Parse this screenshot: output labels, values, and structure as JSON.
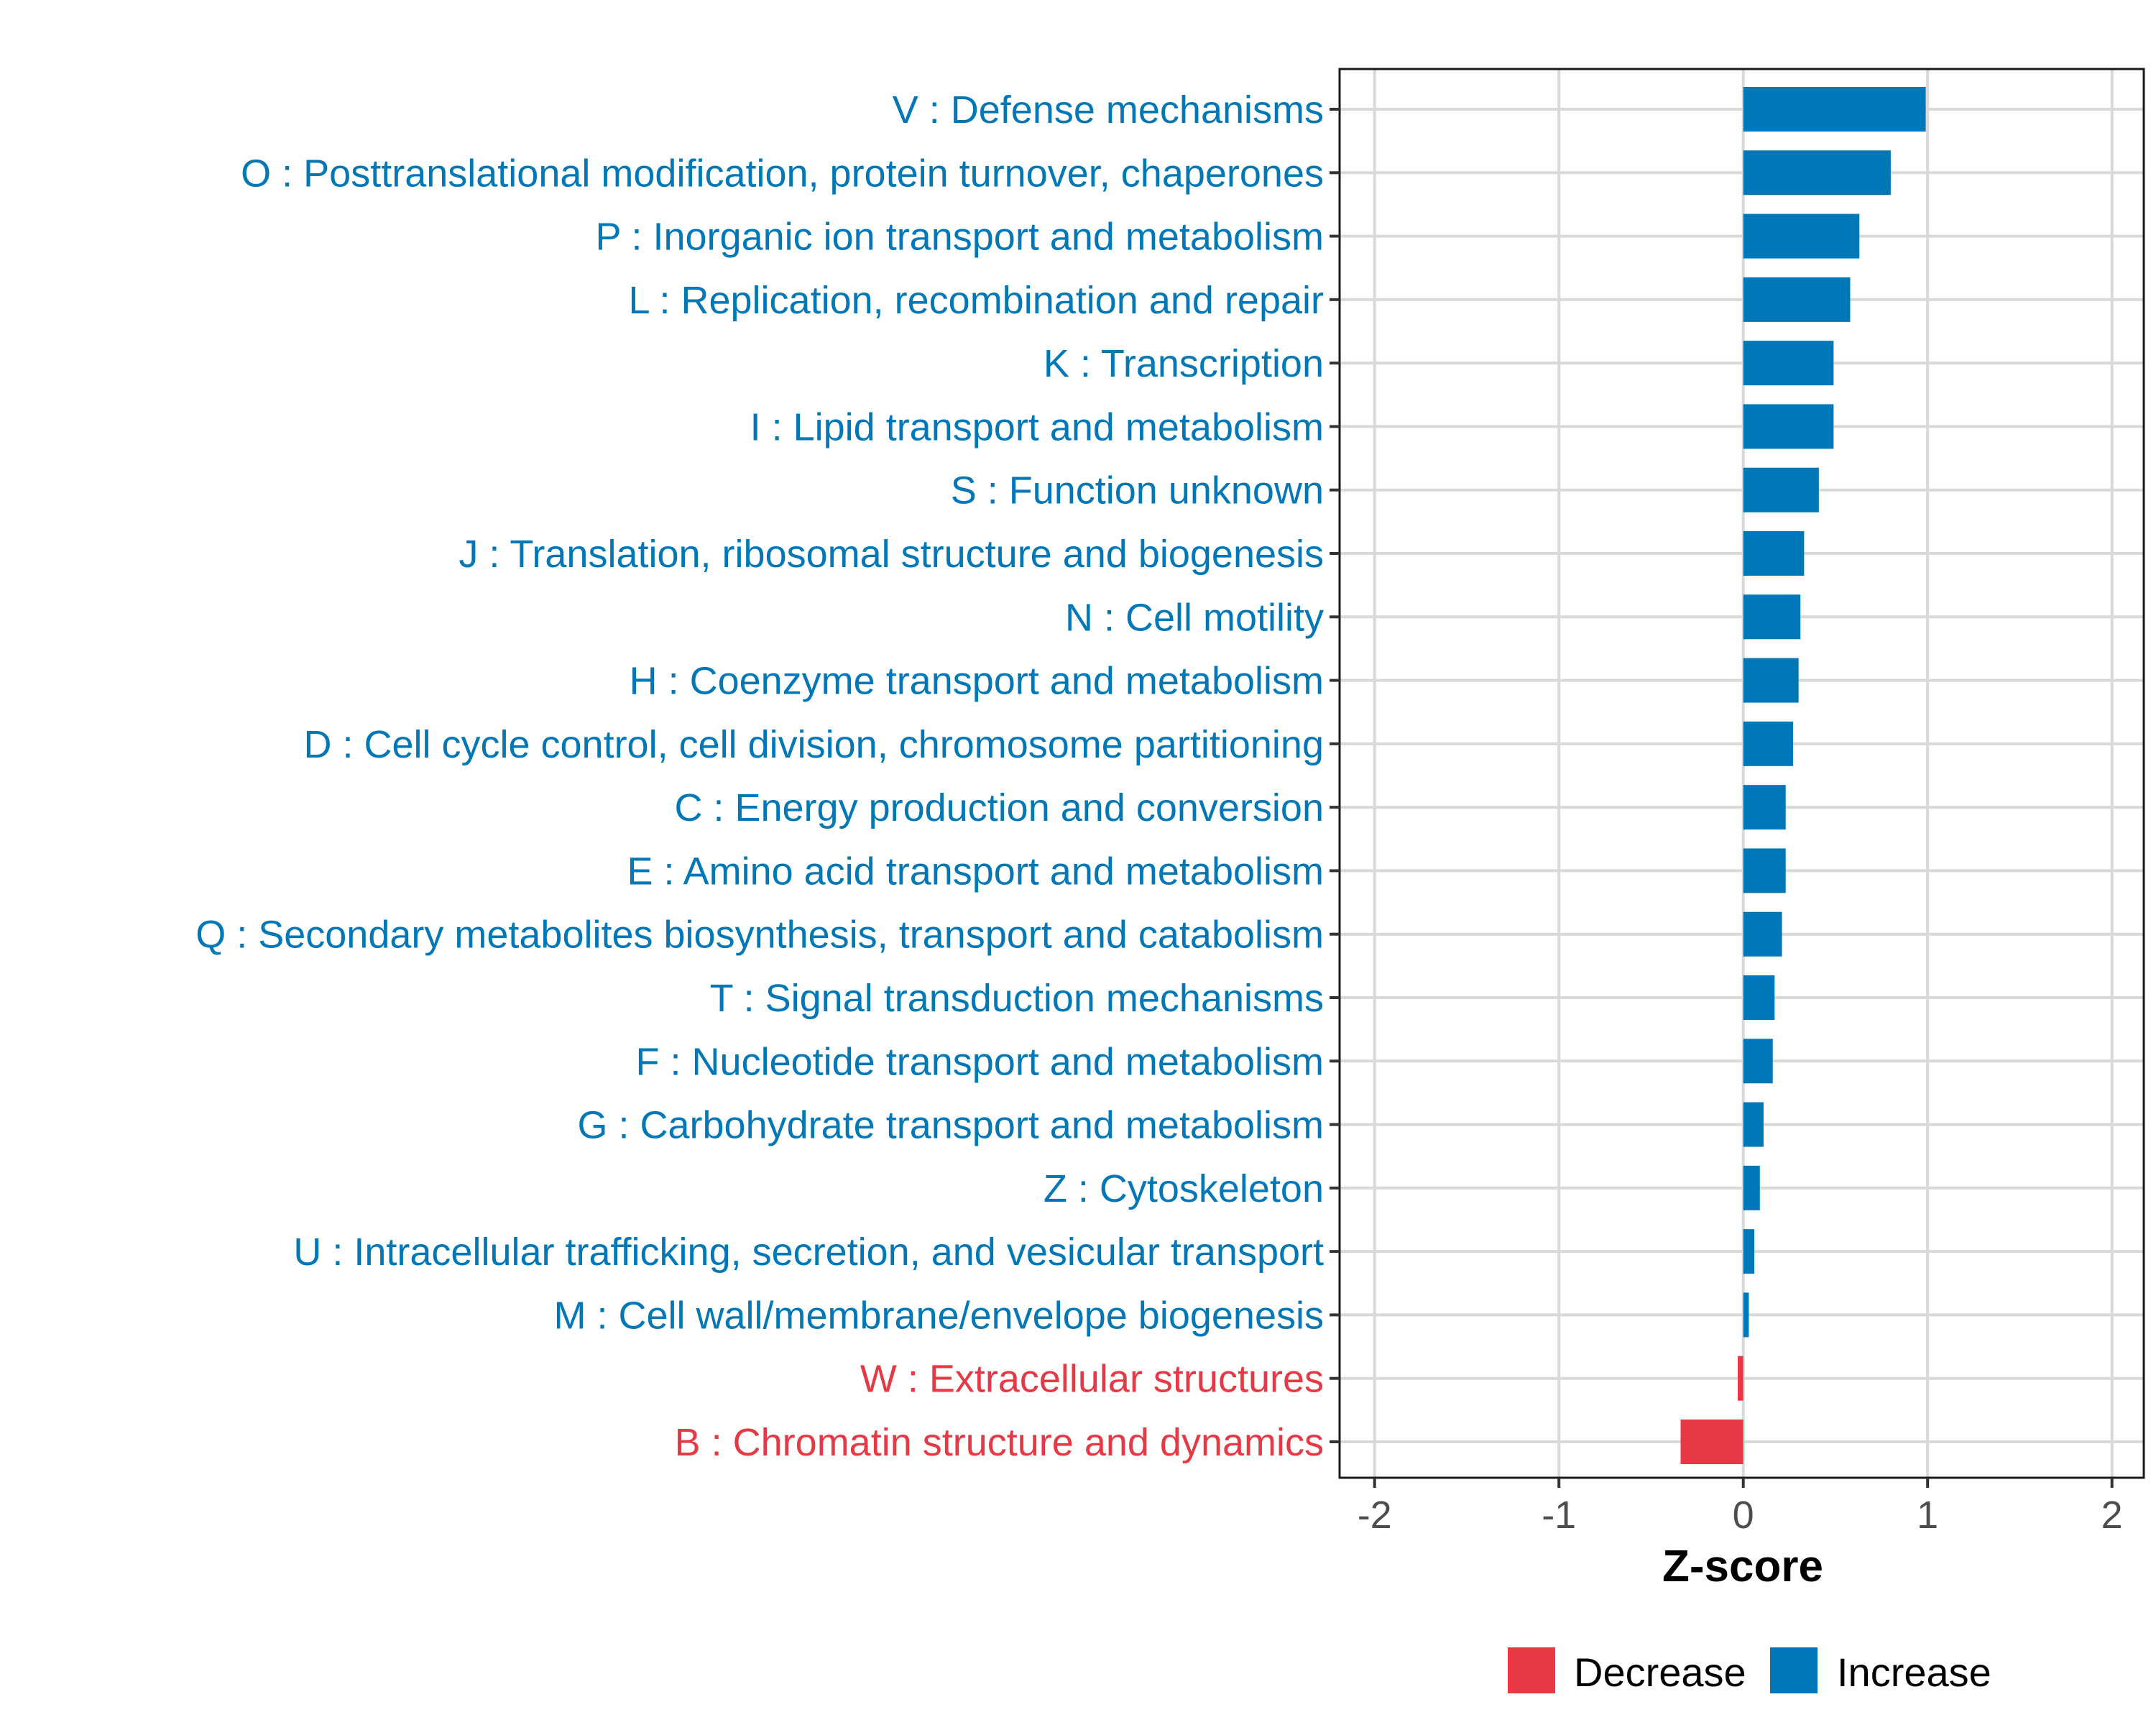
{
  "chart_data": {
    "type": "bar",
    "orientation": "horizontal",
    "xlabel": "Z-score",
    "ylabel": "",
    "xlim": [
      -2.2,
      2.2
    ],
    "x_ticks": [
      "-2",
      "-1",
      "0",
      "1",
      "2"
    ],
    "x_tick_values": [
      -2,
      -1,
      0,
      1,
      2
    ],
    "grid": true,
    "legend_position": "bottom",
    "legend": [
      {
        "label": "Decrease",
        "color": "#E63946"
      },
      {
        "label": "Increase",
        "color": "#0077B6"
      }
    ],
    "categories": [
      "V : Defense mechanisms",
      "O : Posttranslational modification, protein turnover, chaperones",
      "P : Inorganic ion transport and metabolism",
      "L : Replication, recombination and repair",
      "K : Transcription",
      "I : Lipid transport and metabolism",
      "S : Function unknown",
      "J : Translation, ribosomal structure and biogenesis",
      "N : Cell motility",
      "H : Coenzyme transport and metabolism",
      "D : Cell cycle control, cell division, chromosome partitioning",
      "C : Energy production and conversion",
      "E : Amino acid transport and metabolism",
      "Q : Secondary metabolites biosynthesis, transport and catabolism",
      "T : Signal transduction mechanisms",
      "F : Nucleotide transport and metabolism",
      "G : Carbohydrate transport and metabolism",
      "Z : Cytoskeleton",
      "U : Intracellular trafficking, secretion, and vesicular transport",
      "M : Cell wall/membrane/envelope biogenesis",
      "W : Extracellular structures",
      "B : Chromatin structure and dynamics"
    ],
    "values": [
      0.99,
      0.8,
      0.63,
      0.58,
      0.49,
      0.49,
      0.41,
      0.33,
      0.31,
      0.3,
      0.27,
      0.23,
      0.23,
      0.21,
      0.17,
      0.16,
      0.11,
      0.09,
      0.06,
      0.03,
      -0.03,
      -0.34
    ]
  },
  "colors": {
    "increase": "#0077B6",
    "decrease": "#E63946",
    "grid": "#D9D9D9",
    "axis_text": "#4D4D4D"
  }
}
